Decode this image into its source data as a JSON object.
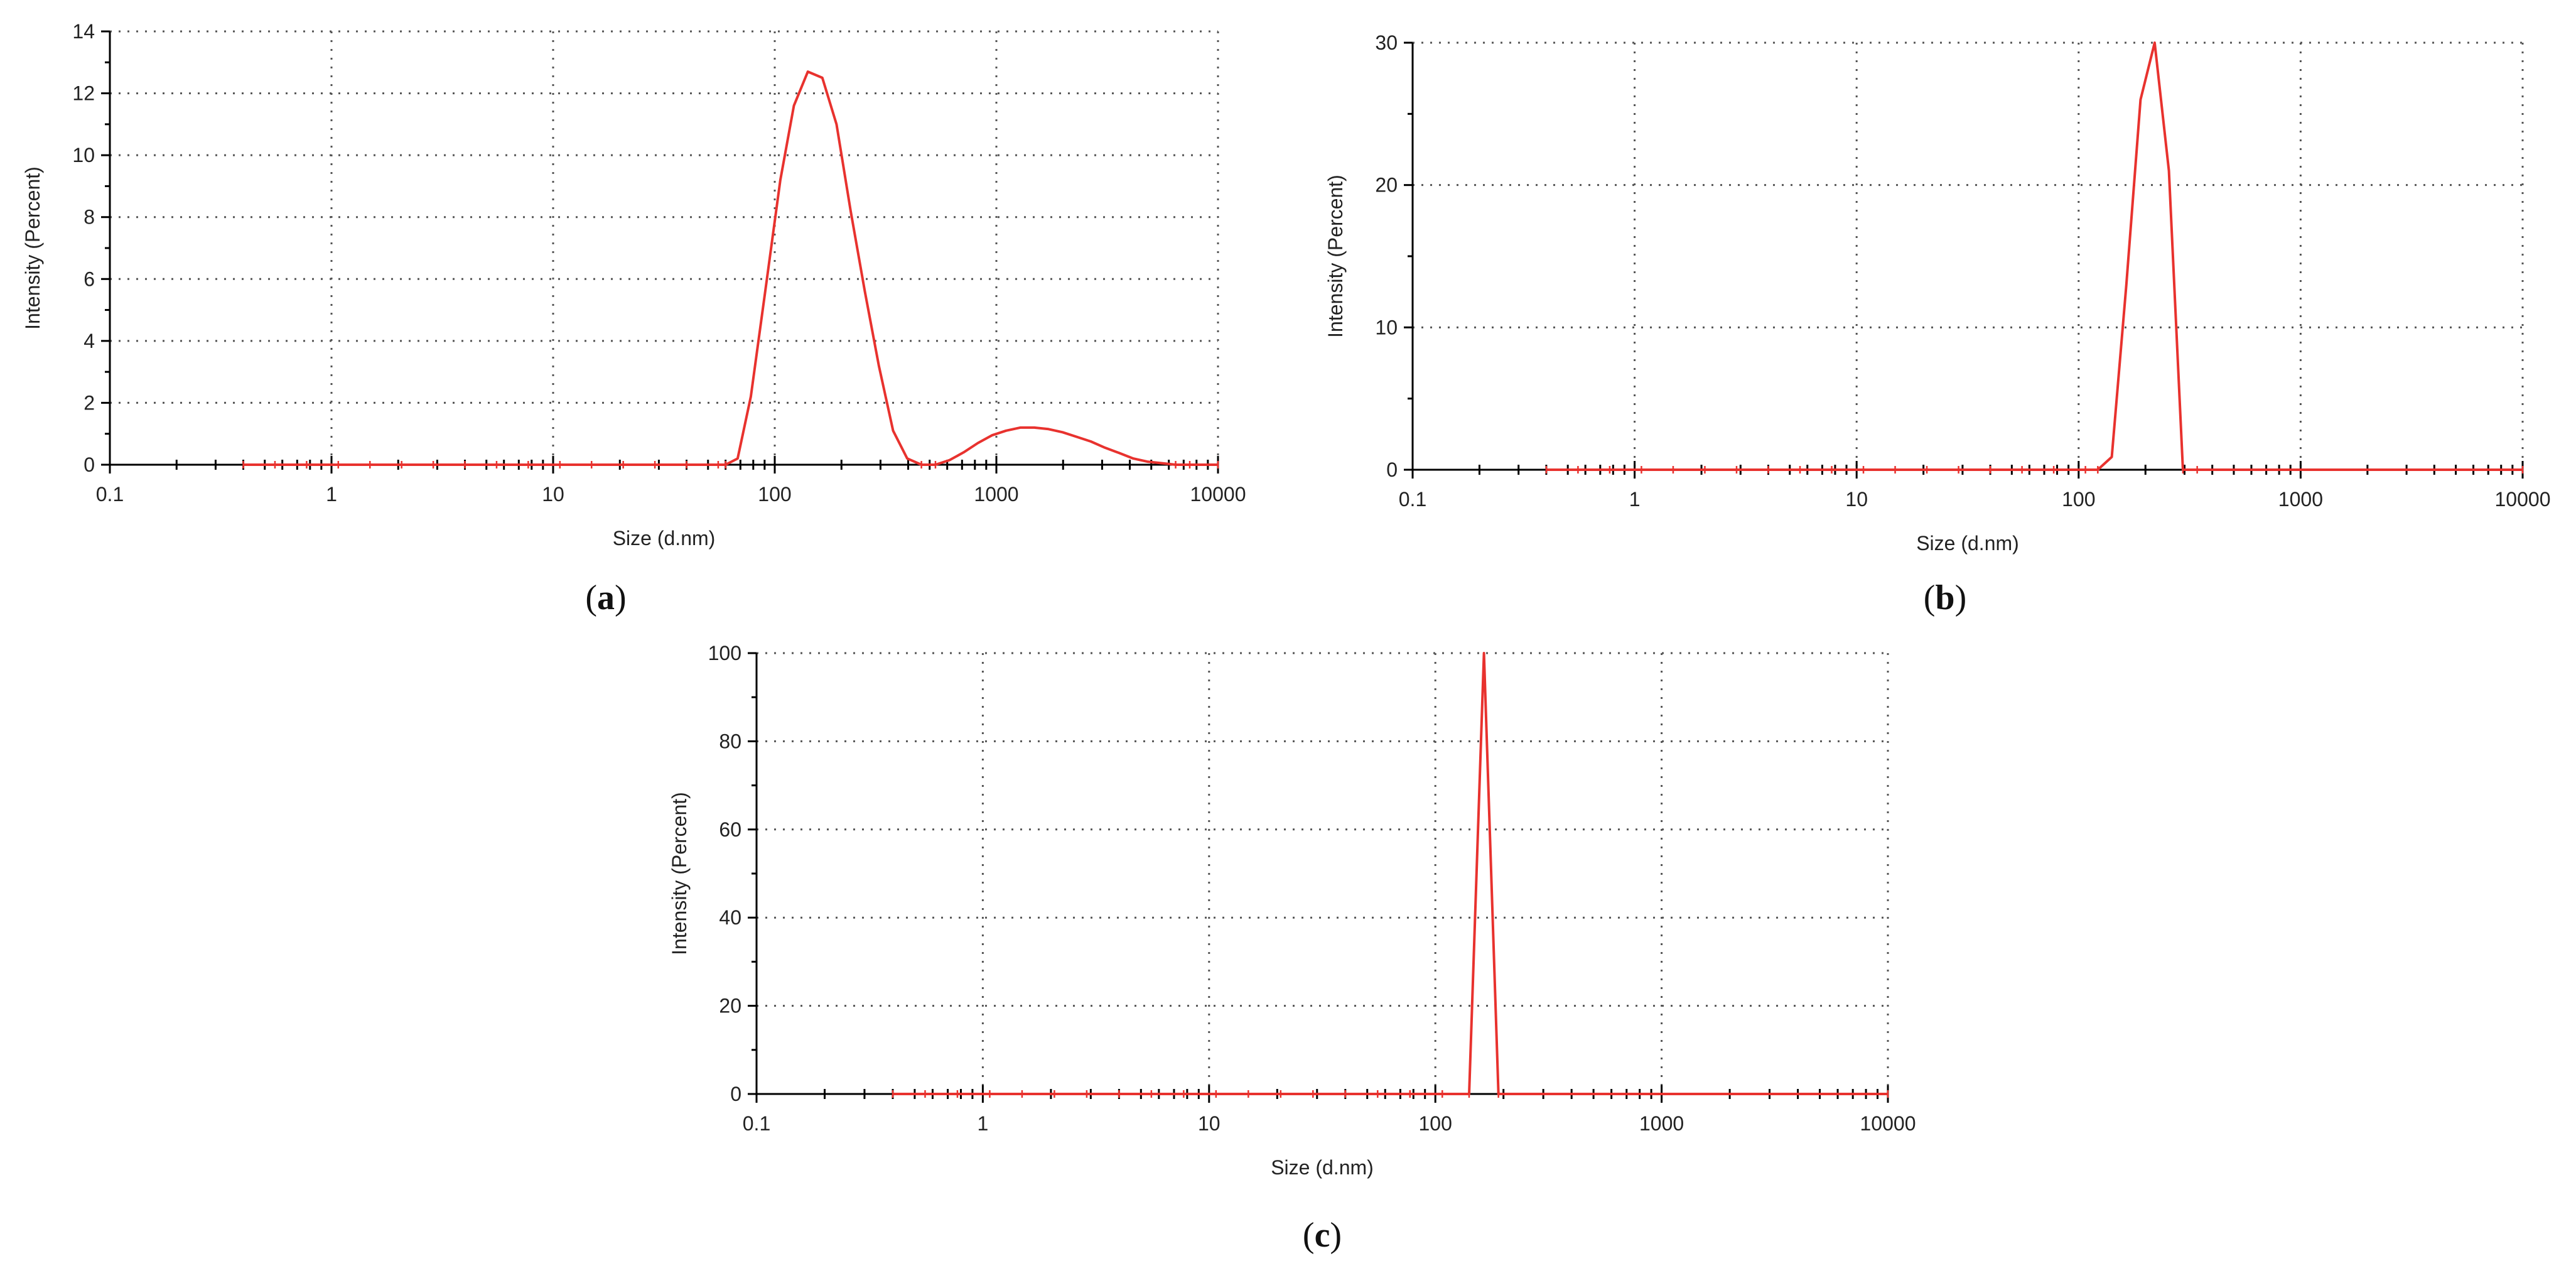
{
  "chart_data": [
    {
      "type": "line",
      "panel_label": "a",
      "xlabel": "Size (d.nm)",
      "ylabel": "Intensity (Percent)",
      "xscale": "log",
      "xlim": [
        0.1,
        10000
      ],
      "ylim": [
        0,
        14
      ],
      "xticks": [
        0.1,
        1,
        10,
        100,
        1000,
        10000
      ],
      "xtick_labels": [
        "0.1",
        "1",
        "10",
        "100",
        "1000",
        "10000"
      ],
      "yticks": [
        0,
        2,
        4,
        6,
        8,
        10,
        12,
        14
      ],
      "ytick_labels": [
        "0",
        "2",
        "4",
        "6",
        "8",
        "10",
        "12",
        "14"
      ],
      "grid": true,
      "series": [
        {
          "name": "Intensity",
          "color": "#e8322e",
          "x": [
            0.4,
            60,
            68,
            78,
            91,
            106,
            122,
            141,
            164,
            190,
            220,
            255,
            295,
            342,
            396,
            459,
            531,
            615,
            712,
            825,
            955,
            1106,
            1281,
            1484,
            1718,
            1990,
            2305,
            2669,
            3091,
            3580,
            4145,
            4801,
            5560,
            6439,
            7456,
            10000
          ],
          "y": [
            0,
            0,
            0.2,
            2.2,
            5.7,
            9.2,
            11.6,
            12.7,
            12.5,
            11.0,
            8.2,
            5.6,
            3.2,
            1.1,
            0.2,
            0,
            0,
            0.15,
            0.4,
            0.7,
            0.95,
            1.1,
            1.2,
            1.2,
            1.15,
            1.05,
            0.9,
            0.75,
            0.55,
            0.38,
            0.2,
            0.1,
            0.05,
            0,
            0,
            0
          ]
        }
      ]
    },
    {
      "type": "line",
      "panel_label": "b",
      "xlabel": "Size (d.nm)",
      "ylabel": "Intensity (Percent)",
      "xscale": "log",
      "xlim": [
        0.1,
        10000
      ],
      "ylim": [
        0,
        30
      ],
      "xticks": [
        0.1,
        1,
        10,
        100,
        1000,
        10000
      ],
      "xtick_labels": [
        "0.1",
        "1",
        "10",
        "100",
        "1000",
        "10000"
      ],
      "yticks": [
        0,
        10,
        20,
        30
      ],
      "ytick_labels": [
        "0",
        "10",
        "20",
        "30"
      ],
      "grid": true,
      "series": [
        {
          "name": "Intensity",
          "color": "#e8322e",
          "x": [
            0.4,
            122,
            141,
            164,
            190,
            220,
            255,
            295,
            342,
            10000
          ],
          "y": [
            0,
            0,
            0.9,
            13,
            26,
            30,
            21,
            0,
            0,
            0
          ]
        }
      ]
    },
    {
      "type": "line",
      "panel_label": "c",
      "xlabel": "Size (d.nm)",
      "ylabel": "Intensity (Percent)",
      "xscale": "log",
      "xlim": [
        0.1,
        10000
      ],
      "ylim": [
        0,
        100
      ],
      "xticks": [
        0.1,
        1,
        10,
        100,
        1000,
        10000
      ],
      "xtick_labels": [
        "0.1",
        "1",
        "10",
        "100",
        "1000",
        "10000"
      ],
      "yticks": [
        0,
        20,
        40,
        60,
        80,
        100
      ],
      "ytick_labels": [
        "0",
        "20",
        "40",
        "60",
        "80",
        "100"
      ],
      "grid": true,
      "series": [
        {
          "name": "Intensity",
          "color": "#e8322e",
          "x": [
            0.4,
            141,
            164,
            190,
            10000
          ],
          "y": [
            0,
            0,
            100,
            0,
            0
          ]
        }
      ]
    }
  ]
}
